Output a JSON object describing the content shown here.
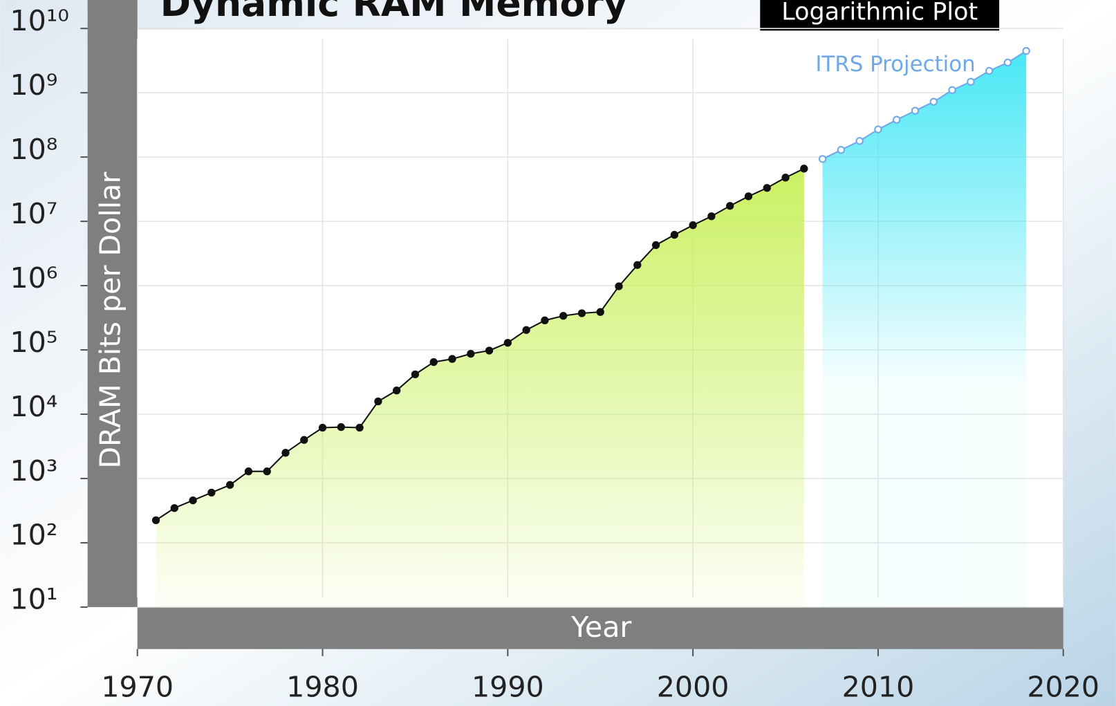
{
  "chart_data": {
    "type": "line",
    "title": "Dynamic RAM Memory",
    "badge": "Logarithmic Plot",
    "x_label": "Year",
    "y_label": "DRAM Bits per Dollar",
    "yscale": "log",
    "grid": true,
    "xlim": [
      1970,
      2020
    ],
    "xticks": [
      1970,
      1980,
      1990,
      2000,
      2010,
      2020
    ],
    "ylim": [
      10,
      10000000000
    ],
    "yticks": [
      {
        "value": 10,
        "label": "10¹"
      },
      {
        "value": 100,
        "label": "10²"
      },
      {
        "value": 1000,
        "label": "10³"
      },
      {
        "value": 10000,
        "label": "10⁴"
      },
      {
        "value": 100000,
        "label": "10⁵"
      },
      {
        "value": 1000000,
        "label": "10⁶"
      },
      {
        "value": 10000000,
        "label": "10⁷"
      },
      {
        "value": 100000000,
        "label": "10⁸"
      },
      {
        "value": 1000000000,
        "label": "10⁹"
      },
      {
        "value": 10000000000,
        "label": "10¹⁰"
      }
    ],
    "series": [
      {
        "color": "#111111",
        "fill": "#c8f05a",
        "marker": "filled",
        "x": [
          1971,
          1972,
          1973,
          1974,
          1975,
          1976,
          1977,
          1978,
          1979,
          1980,
          1981,
          1982,
          1983,
          1984,
          1985,
          1986,
          1987,
          1988,
          1989,
          1990,
          1991,
          1992,
          1993,
          1994,
          1995,
          1996,
          1997,
          1998,
          1999,
          2000,
          2001,
          2002,
          2003,
          2004,
          2005,
          2006
        ],
        "values": [
          224,
          347,
          457,
          603,
          794,
          1290,
          1290,
          2510,
          3980,
          6170,
          6310,
          6170,
          15800,
          23400,
          41700,
          64600,
          72400,
          87100,
          97700,
          129000,
          204000,
          288000,
          339000,
          372000,
          389000,
          977000,
          2090000,
          4270000,
          6170000,
          8710000,
          12000000,
          17400000,
          24500000,
          33100000,
          47900000,
          66100000
        ]
      },
      {
        "name": "ITRS Projection",
        "color": "#6fa8e8",
        "fill": "#3fe6f5",
        "marker": "open",
        "x": [
          2007,
          2008,
          2009,
          2010,
          2011,
          2012,
          2013,
          2014,
          2015,
          2016,
          2017,
          2018
        ],
        "values": [
          93300000,
          129000000,
          178000000,
          269000000,
          380000000,
          525000000,
          724000000,
          1100000000,
          1480000000,
          2190000000,
          2950000000,
          4470000000
        ]
      }
    ]
  }
}
